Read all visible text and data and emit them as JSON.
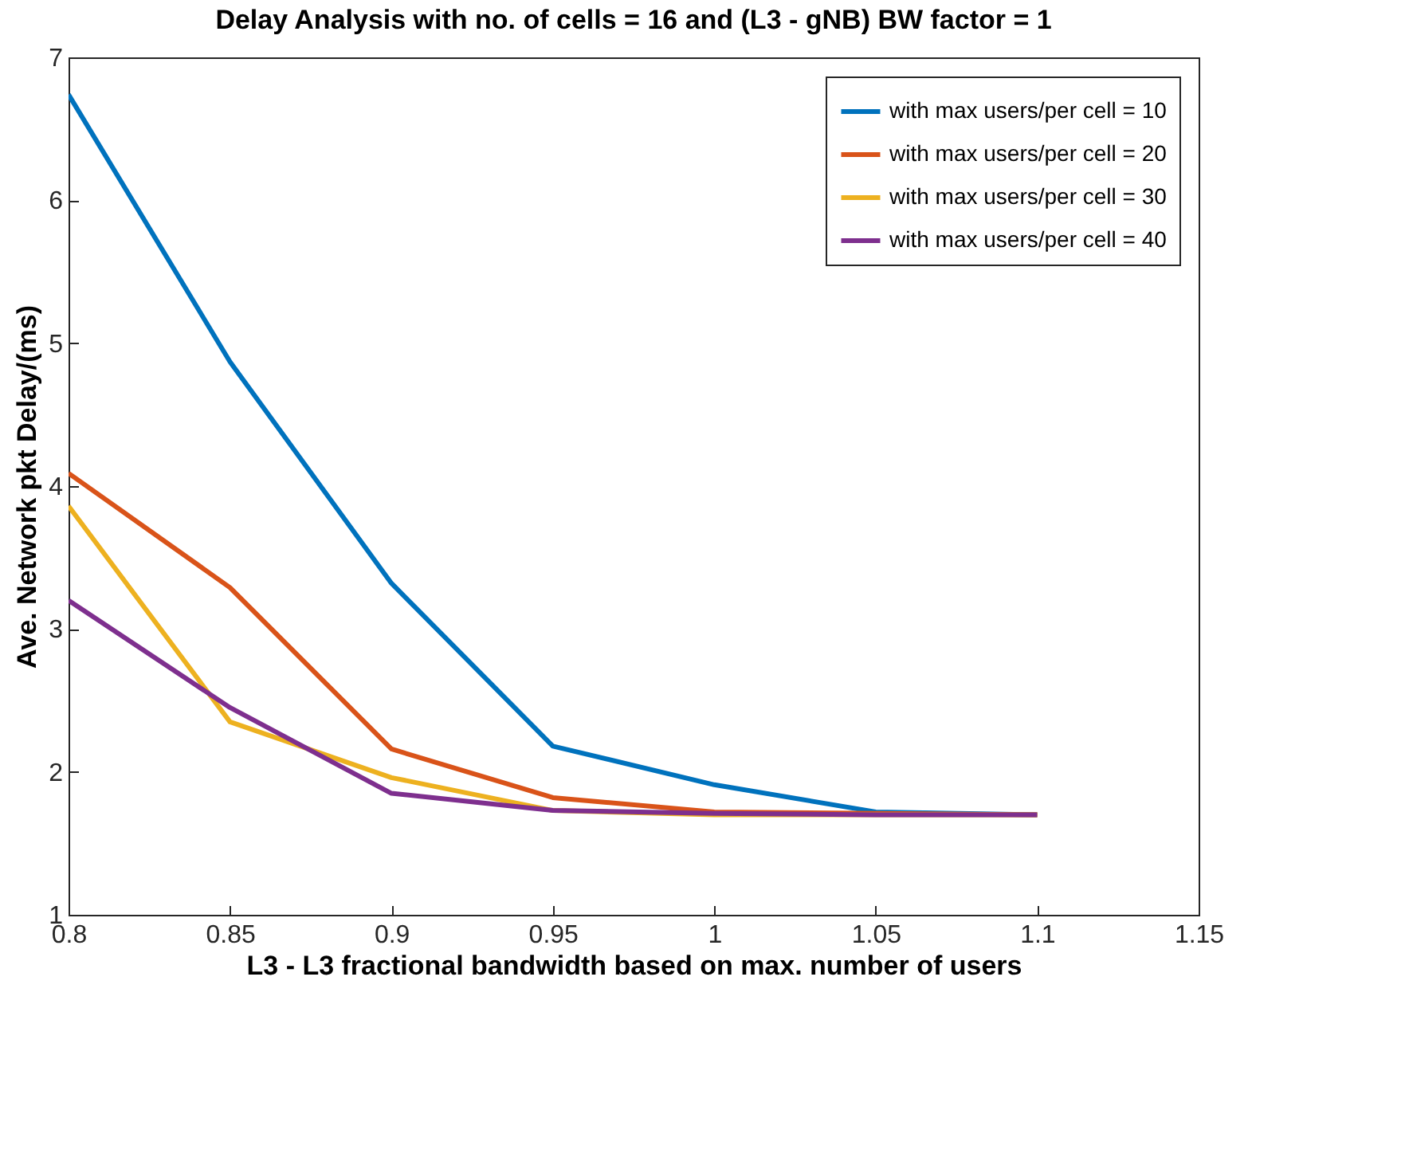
{
  "chart_data": {
    "type": "line",
    "title": "Delay Analysis with no. of cells = 16 and (L3 - gNB) BW factor = 1",
    "xlabel": "L3 - L3 fractional bandwidth based on max. number of users",
    "ylabel": "Ave. Network pkt Delay/(ms)",
    "x": [
      0.8,
      0.85,
      0.9,
      0.95,
      1,
      1.05,
      1.1
    ],
    "series": [
      {
        "name": "with max users/per cell = 10",
        "color": "#0072bd",
        "values": [
          6.74,
          4.87,
          3.32,
          2.18,
          1.91,
          1.72,
          1.7
        ]
      },
      {
        "name": "with max users/per cell = 20",
        "color": "#d95319",
        "values": [
          4.09,
          3.29,
          2.16,
          1.82,
          1.72,
          1.71,
          1.7
        ]
      },
      {
        "name": "with max users/per cell = 30",
        "color": "#edb120",
        "values": [
          3.86,
          2.35,
          1.96,
          1.73,
          1.7,
          1.7,
          1.7
        ]
      },
      {
        "name": "with max users/per cell = 40",
        "color": "#7e2f8e",
        "values": [
          3.2,
          2.45,
          1.85,
          1.73,
          1.71,
          1.7,
          1.7
        ]
      }
    ],
    "xlim": [
      0.8,
      1.15
    ],
    "xticks": [
      0.8,
      0.85,
      0.9,
      0.95,
      1,
      1.05,
      1.1,
      1.15
    ],
    "ylim": [
      1,
      7
    ],
    "yticks": [
      1,
      2,
      3,
      4,
      5,
      6,
      7
    ],
    "grid": false,
    "legend": "top right",
    "marker": "none",
    "line_style": "solid"
  }
}
